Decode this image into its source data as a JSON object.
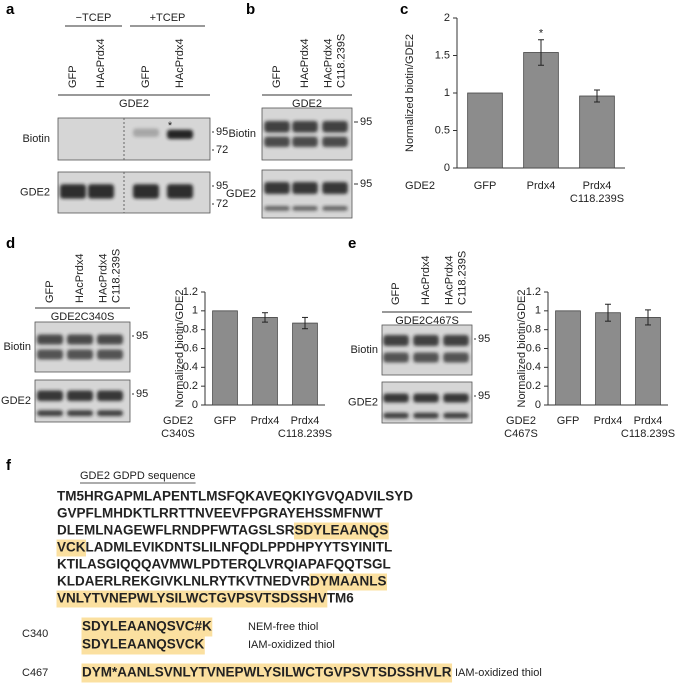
{
  "panel_labels": [
    "a",
    "b",
    "c",
    "d",
    "e",
    "f"
  ],
  "blots": {
    "a": {
      "conditions": [
        "−TCEP",
        "+TCEP"
      ],
      "lanes": [
        "GFP",
        "HAcPrdx4",
        "GFP",
        "HAcPrdx4"
      ],
      "protein": "GDE2",
      "rows": [
        {
          "label": "Biotin",
          "markers": [
            "95",
            "72"
          ]
        },
        {
          "label": "GDE2",
          "markers": [
            "95",
            "72"
          ]
        }
      ],
      "asterisk": "*"
    },
    "b": {
      "lanes": [
        "GFP",
        "HAcPrdx4",
        "HAcPrdx4\nC118.239S"
      ],
      "protein": "GDE2",
      "rows": [
        {
          "label": "Biotin",
          "markers": [
            "95"
          ]
        },
        {
          "label": "GDE2",
          "markers": [
            "95"
          ]
        }
      ]
    },
    "d": {
      "lanes": [
        "GFP",
        "HAcPrdx4",
        "HAcPrdx4\nC118.239S"
      ],
      "protein": "GDE2C340S",
      "rows": [
        {
          "label": "Biotin",
          "markers": [
            "95"
          ]
        },
        {
          "label": "GDE2",
          "markers": [
            "95"
          ]
        }
      ]
    },
    "e": {
      "lanes": [
        "GFP",
        "HAcPrdx4",
        "HAcPrdx4\nC118.239S"
      ],
      "protein": "GDE2C467S",
      "rows": [
        {
          "label": "Biotin",
          "markers": [
            "95"
          ]
        },
        {
          "label": "GDE2",
          "markers": [
            "95"
          ]
        }
      ]
    }
  },
  "chart_data": [
    {
      "type": "bar",
      "ylabel": "Normalized biotin/GDE2",
      "row_label": "GDE2",
      "categories": [
        "GFP",
        "Prdx4",
        "Prdx4\nC118.239S"
      ],
      "values": [
        1,
        1.54,
        0.96
      ],
      "errors": [
        null,
        0.17,
        0.08
      ],
      "color": "#8c8c8c",
      "ylim": [
        0,
        2
      ],
      "yticks": [
        0,
        0.5,
        1,
        1.5,
        2
      ],
      "annotations": [
        {
          "category": "Prdx4",
          "text": "*"
        }
      ]
    },
    {
      "type": "bar",
      "ylabel": "Normalized biotin/GDE2",
      "row_label": "GDE2\nC340S",
      "categories": [
        "GFP",
        "Prdx4",
        "Prdx4\nC118.239S"
      ],
      "values": [
        1,
        0.93,
        0.87
      ],
      "errors": [
        null,
        0.05,
        0.06
      ],
      "color": "#8c8c8c",
      "ylim": [
        0,
        1.2
      ],
      "yticks": [
        0,
        0.2,
        0.4,
        0.6,
        0.8,
        1,
        1.2
      ]
    },
    {
      "type": "bar",
      "ylabel": "Normalized biotin/GDE2",
      "row_label": "GDE2\nC467S",
      "categories": [
        "GFP",
        "Prdx4",
        "Prdx4\nC118.239S"
      ],
      "values": [
        1,
        0.98,
        0.93
      ],
      "errors": [
        null,
        0.09,
        0.08
      ],
      "color": "#8c8c8c",
      "ylim": [
        0,
        1.2
      ],
      "yticks": [
        0,
        0.2,
        0.4,
        0.6,
        0.8,
        1,
        1.2
      ]
    }
  ],
  "sequence": {
    "title": "GDE2 GDPD sequence",
    "lines": [
      [
        {
          "text": "TM5",
          "color": "#2e9e3e"
        },
        {
          "text": "HRGAPMLAPENTLMSFQKAVEQKIYGVQADVILSYD",
          "color": "#3347b0"
        }
      ],
      [
        {
          "text": "GVPFLMHDKTLRRTTNVEEVFPGRAYEHSSMFNWT",
          "color": "#3347b0"
        }
      ],
      [
        {
          "text": "DLEMLNAGEWFLRNDPFWTAGSLSR",
          "color": "#3347b0"
        },
        {
          "text": "SDYLEAANQS",
          "color": "#3347b0",
          "highlight": true
        }
      ],
      [
        {
          "text": "V",
          "color": "#3347b0",
          "highlight": true
        },
        {
          "text": "C",
          "color": "#e8303a",
          "highlight": true
        },
        {
          "text": "K",
          "color": "#3347b0",
          "highlight": true
        },
        {
          "text": "LADMLEVIKDNTSLILNFQDLPPDHPYYTSYINITL",
          "color": "#3347b0"
        }
      ],
      [
        {
          "text": "KTILASGIQQQAVMWLPDTERQLVRQIAPAFQQTSGL",
          "color": "#3347b0"
        }
      ],
      [
        {
          "text": "KLDAERLREKGIVKLNLRYTKVTNEDVR",
          "color": "#3347b0"
        },
        {
          "text": "DYMAANLS",
          "color": "#3347b0",
          "highlight": true
        }
      ],
      [
        {
          "text": "VNLYTVNEPWLYSILW",
          "color": "#3347b0",
          "highlight": true
        },
        {
          "text": "C",
          "color": "#e8303a",
          "highlight": true
        },
        {
          "text": "TGVPSVTSDSSHV",
          "color": "#3347b0",
          "highlight": true
        },
        {
          "text": "TM6",
          "color": "#2e9e3e"
        }
      ]
    ]
  },
  "peptides": [
    {
      "site": "C340",
      "rows": [
        {
          "segments": [
            {
              "text": "SDYLEAANQSV",
              "color": "#111111",
              "highlight": true
            },
            {
              "text": "C#",
              "color": "#e8303a",
              "highlight": true
            },
            {
              "text": "K",
              "color": "#111111",
              "highlight": true
            }
          ],
          "note": "NEM-free thiol"
        },
        {
          "segments": [
            {
              "text": "SDYLEAANQSV",
              "color": "#111111",
              "highlight": true
            },
            {
              "text": "C",
              "color": "#e8303a",
              "highlight": true
            },
            {
              "text": "K",
              "color": "#111111",
              "highlight": true
            }
          ],
          "note": "IAM-oxidized thiol"
        }
      ]
    },
    {
      "site": "C467",
      "rows": [
        {
          "segments": [
            {
              "text": "DYM*AANLSVNLYTVNEPWLYSILW",
              "color": "#111111",
              "highlight": true
            },
            {
              "text": "C",
              "color": "#e8303a",
              "highlight": true
            },
            {
              "text": "TGVPSVTSDSSHVLR",
              "color": "#111111",
              "highlight": true
            }
          ],
          "note": "IAM-oxidized thiol"
        }
      ]
    }
  ]
}
